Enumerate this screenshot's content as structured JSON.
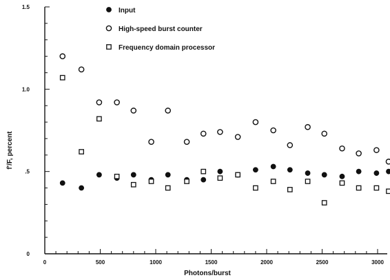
{
  "chart_data": {
    "type": "scatter",
    "title": "",
    "xlabel": "Photons/burst",
    "ylabel": "f'/F, percent",
    "xlim": [
      0,
      3000
    ],
    "ylim": [
      0,
      1.5
    ],
    "x_ticks": [
      0,
      500,
      1000,
      1500,
      2000,
      2500,
      3000
    ],
    "x_tick_labels": [
      "0",
      "500",
      "1000",
      "1500",
      "2000",
      "2500",
      "3000"
    ],
    "y_ticks": [
      0,
      0.5,
      1.0,
      1.5
    ],
    "y_tick_labels": [
      "0",
      ".5",
      "1.0",
      "1.5"
    ],
    "grid": false,
    "legend_position": "top-left",
    "colors": {
      "ink": "#111111"
    },
    "series": [
      {
        "name": "Input",
        "marker": "filled-circle",
        "x": [
          160,
          330,
          490,
          650,
          800,
          960,
          1110,
          1280,
          1430,
          1580,
          1740,
          1900,
          2060,
          2210,
          2370,
          2520,
          2680,
          2830,
          2990,
          3150
        ],
        "y": [
          0.43,
          0.4,
          0.48,
          0.46,
          0.48,
          0.45,
          0.48,
          0.45,
          0.45,
          0.5,
          0.48,
          0.51,
          0.53,
          0.51,
          0.49,
          0.48,
          0.47,
          0.5,
          0.49,
          0.5
        ]
      },
      {
        "name": "High-speed burst counter",
        "marker": "open-circle",
        "x": [
          160,
          330,
          490,
          650,
          800,
          960,
          1110,
          1280,
          1430,
          1580,
          1740,
          1900,
          2060,
          2210,
          2370,
          2520,
          2680,
          2830,
          2990,
          3150
        ],
        "y": [
          1.2,
          1.12,
          0.92,
          0.92,
          0.87,
          0.68,
          0.87,
          0.68,
          0.73,
          0.74,
          0.71,
          0.8,
          0.75,
          0.66,
          0.77,
          0.73,
          0.64,
          0.61,
          0.63,
          0.56
        ]
      },
      {
        "name": "Frequency domain processor",
        "marker": "open-square",
        "x": [
          160,
          330,
          490,
          650,
          800,
          960,
          1110,
          1280,
          1430,
          1580,
          1740,
          1900,
          2060,
          2210,
          2370,
          2520,
          2680,
          2830,
          2990,
          3150
        ],
        "y": [
          1.07,
          0.62,
          0.82,
          0.47,
          0.42,
          0.44,
          0.4,
          0.44,
          0.5,
          0.46,
          0.48,
          0.4,
          0.44,
          0.39,
          0.44,
          0.31,
          0.43,
          0.4,
          0.4,
          0.38
        ]
      }
    ]
  }
}
